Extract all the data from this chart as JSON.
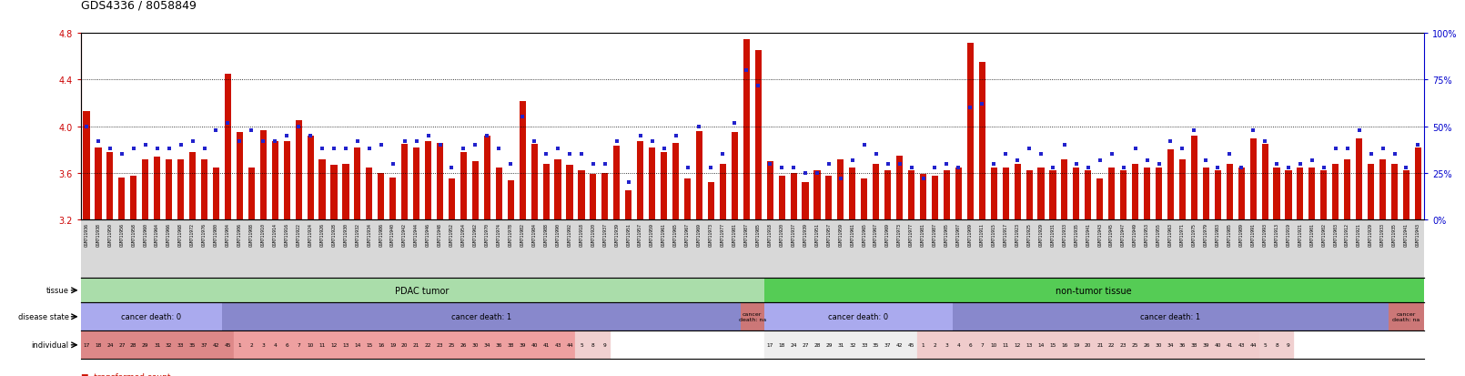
{
  "title": "GDS4336 / 8058849",
  "left_ylim": [
    3.2,
    4.8
  ],
  "right_ylim": [
    0,
    100
  ],
  "left_yticks": [
    3.2,
    3.6,
    4.0,
    4.4,
    4.8
  ],
  "right_yticks": [
    0,
    25,
    50,
    75,
    100
  ],
  "left_tick_color": "#cc0000",
  "right_tick_color": "#0000cc",
  "bar_color": "#cc1100",
  "dot_color": "#2222cc",
  "bg_color": "#ffffff",
  "n_samples": 114,
  "pdac_tumor_count": 58,
  "non_tumor_count": 56,
  "pdac_cancer_death_0_count": 12,
  "pdac_cancer_death_1_count": 44,
  "pdac_cancer_death_na_count": 2,
  "non_tumor_cancer_death_0_count": 16,
  "non_tumor_cancer_death_1_count": 37,
  "non_tumor_cancer_death_na_count": 3,
  "tissue_pdac_color": "#aaddaa",
  "tissue_non_tumor_color": "#55cc55",
  "disease_death0_color": "#aaaaee",
  "disease_death1_color": "#8888cc",
  "disease_na_color": "#cc7777",
  "indiv_pdac_d0_color": "#dd8888",
  "indiv_pdac_d1_color": "#eea0a0",
  "indiv_non_d0_color": "#eeeeee",
  "indiv_non_d1_color": "#f0cccc",
  "indiv_na_color": "#f0d0d0",
  "pdac_samples": [
    "GSM711936",
    "GSM711938",
    "GSM711950",
    "GSM711956",
    "GSM711958",
    "GSM711960",
    "GSM711964",
    "GSM711966",
    "GSM711968",
    "GSM711972",
    "GSM711976",
    "GSM711980",
    "GSM711904",
    "GSM711906",
    "GSM711908",
    "GSM711910",
    "GSM711914",
    "GSM711916",
    "GSM711922",
    "GSM711924",
    "GSM711926",
    "GSM711928",
    "GSM711930",
    "GSM711932",
    "GSM711934",
    "GSM711986",
    "GSM711940",
    "GSM711942",
    "GSM711944",
    "GSM711946",
    "GSM711948",
    "GSM711952",
    "GSM711954",
    "GSM711962",
    "GSM711970",
    "GSM711974",
    "GSM711978",
    "GSM711982",
    "GSM711984",
    "GSM711988",
    "GSM711990",
    "GSM711992",
    "GSM711918",
    "GSM711920",
    "GSM711937",
    "GSM711939",
    "GSM711951",
    "GSM711957",
    "GSM711959",
    "GSM711961",
    "GSM711965",
    "GSM711967",
    "GSM711969",
    "GSM711973",
    "GSM711977",
    "GSM711981",
    "GSM711987",
    "GSM711985"
  ],
  "non_tumor_samples": [
    "GSM711918",
    "GSM711920",
    "GSM711937",
    "GSM711939",
    "GSM711951",
    "GSM711957",
    "GSM711959",
    "GSM711961",
    "GSM711965",
    "GSM711967",
    "GSM711969",
    "GSM711973",
    "GSM711977",
    "GSM711981",
    "GSM711987",
    "GSM711905",
    "GSM711907",
    "GSM711909",
    "GSM711911",
    "GSM711915",
    "GSM711917",
    "GSM711923",
    "GSM711925",
    "GSM711929",
    "GSM711931",
    "GSM711933",
    "GSM711935",
    "GSM711941",
    "GSM711943",
    "GSM711945",
    "GSM711947",
    "GSM711949",
    "GSM711953",
    "GSM711955",
    "GSM711963",
    "GSM711971",
    "GSM711975",
    "GSM711979",
    "GSM711983",
    "GSM711985",
    "GSM711989",
    "GSM711991",
    "GSM711993",
    "GSM711913",
    "GSM711919",
    "GSM711921",
    "GSM711901",
    "GSM711902",
    "GSM711903",
    "GSM711912",
    "GSM711921",
    "GSM711929",
    "GSM711933",
    "GSM711935",
    "GSM711941",
    "GSM711943"
  ],
  "bar_heights": [
    4.13,
    3.82,
    3.78,
    3.56,
    3.58,
    3.72,
    3.74,
    3.72,
    3.72,
    3.78,
    3.72,
    3.65,
    4.45,
    3.95,
    3.65,
    3.97,
    3.87,
    3.87,
    4.05,
    3.92,
    3.72,
    3.67,
    3.68,
    3.82,
    3.65,
    3.6,
    3.56,
    3.85,
    3.82,
    3.87,
    3.86,
    3.55,
    3.78,
    3.7,
    3.92,
    3.65,
    3.54,
    4.22,
    3.85,
    3.68,
    3.72,
    3.67,
    3.62,
    3.59,
    3.6,
    3.83,
    3.45,
    3.87,
    3.82,
    3.78,
    3.86,
    3.55,
    3.96,
    3.52,
    3.68,
    3.95,
    4.75,
    4.65,
    3.7,
    3.58,
    3.6,
    3.52,
    3.62,
    3.58,
    3.72,
    3.65,
    3.55,
    3.68,
    3.62,
    3.75,
    3.62,
    3.59,
    3.58,
    3.62,
    3.65,
    4.72,
    4.55,
    3.65,
    3.65,
    3.68,
    3.62,
    3.65,
    3.62,
    3.72,
    3.65,
    3.62,
    3.55,
    3.65,
    3.62,
    3.68,
    3.65,
    3.65,
    3.8,
    3.72,
    3.92,
    3.65,
    3.62,
    3.68,
    3.65,
    3.9,
    3.85,
    3.65,
    3.62,
    3.65,
    3.65,
    3.62,
    3.68,
    3.72,
    3.9,
    3.68,
    3.72,
    3.68,
    3.62,
    3.82
  ],
  "dot_heights": [
    50,
    42,
    38,
    35,
    38,
    40,
    38,
    38,
    40,
    42,
    38,
    48,
    52,
    42,
    48,
    42,
    42,
    45,
    50,
    45,
    38,
    38,
    38,
    42,
    38,
    40,
    30,
    42,
    42,
    45,
    40,
    28,
    38,
    40,
    45,
    38,
    30,
    55,
    42,
    35,
    38,
    35,
    35,
    30,
    30,
    42,
    20,
    45,
    42,
    38,
    45,
    28,
    50,
    28,
    35,
    52,
    80,
    72,
    30,
    28,
    28,
    25,
    25,
    30,
    22,
    32,
    40,
    35,
    30,
    30,
    28,
    22,
    28,
    30,
    28,
    60,
    62,
    30,
    35,
    32,
    38,
    35,
    28,
    40,
    30,
    28,
    32,
    35,
    28,
    38,
    32,
    30,
    42,
    38,
    48,
    32,
    28,
    35,
    28,
    48,
    42,
    30,
    28,
    30,
    32,
    28,
    38,
    38,
    48,
    35,
    38,
    35,
    28,
    40
  ],
  "pdac_d0_ind": [
    "17",
    "18",
    "24",
    "27",
    "28",
    "29",
    "31",
    "32",
    "33",
    "35",
    "37",
    "42",
    "45"
  ],
  "pdac_d1_ind": [
    "1",
    "2",
    "3",
    "4",
    "6",
    "7",
    "10",
    "11",
    "12",
    "13",
    "14",
    "15",
    "16",
    "19",
    "20",
    "21",
    "22",
    "23",
    "25",
    "26",
    "30",
    "34",
    "36",
    "38",
    "39",
    "40",
    "41",
    "43",
    "44"
  ],
  "pdac_na_ind": [
    "5",
    "8",
    "9"
  ],
  "non_d0_ind": [
    "17",
    "18",
    "24",
    "27",
    "28",
    "29",
    "31",
    "32",
    "33",
    "35",
    "37",
    "42",
    "45"
  ],
  "non_d1_ind": [
    "1",
    "2",
    "3",
    "4",
    "6",
    "7",
    "10",
    "11",
    "12",
    "13",
    "14",
    "15",
    "16",
    "19",
    "20",
    "21",
    "22",
    "23",
    "25",
    "26",
    "30",
    "34",
    "36",
    "38",
    "39",
    "40",
    "41",
    "43",
    "44"
  ],
  "non_na_ind": [
    "5",
    "8",
    "9"
  ]
}
